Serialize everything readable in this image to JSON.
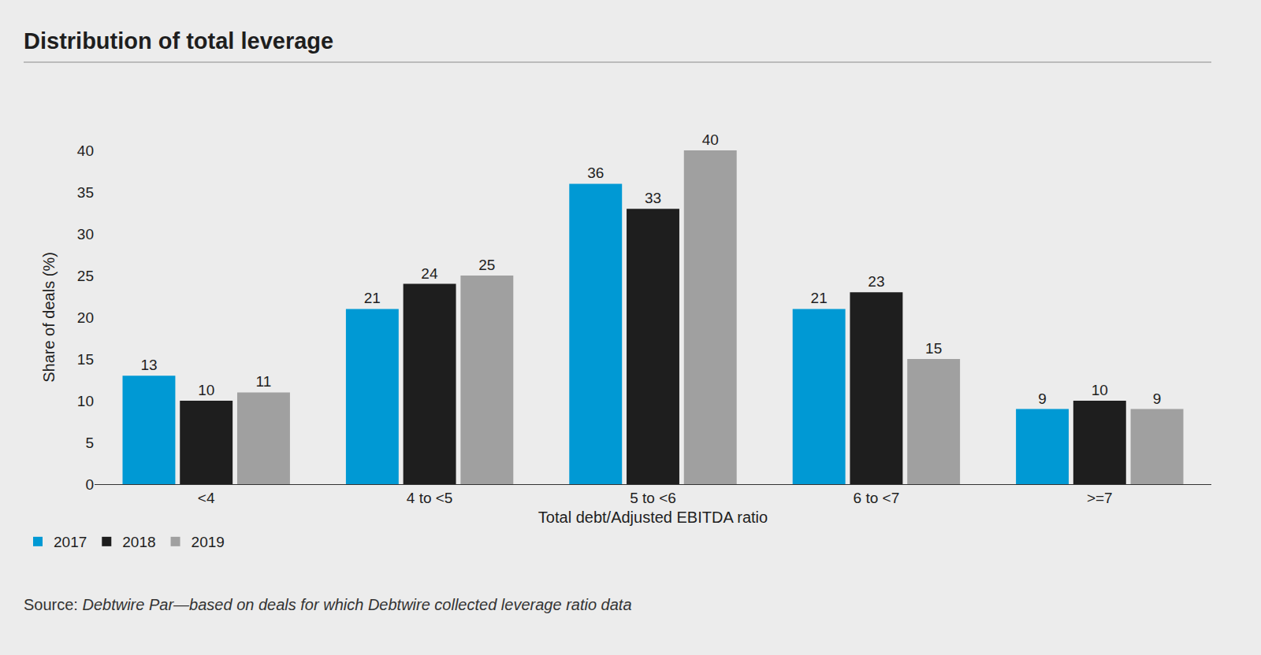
{
  "chart_data": {
    "type": "bar",
    "title": "Distribution of total leverage",
    "x_label": "Total debt/Adjusted EBITDA ratio",
    "y_label": "Share of deals (%)",
    "categories": [
      "<4",
      "4 to <5",
      "5 to <6",
      "6 to <7",
      ">=7"
    ],
    "series": [
      {
        "name": "2017",
        "color": "#0099d4",
        "values": [
          13,
          21,
          36,
          21,
          9
        ]
      },
      {
        "name": "2018",
        "color": "#1e1e1e",
        "values": [
          10,
          24,
          33,
          23,
          10
        ]
      },
      {
        "name": "2019",
        "color": "#a0a0a0",
        "values": [
          11,
          25,
          40,
          15,
          9
        ]
      }
    ],
    "ylim": [
      0,
      40
    ],
    "yticks": [
      0,
      5,
      10,
      15,
      20,
      25,
      30,
      35,
      40
    ],
    "grid": false,
    "legend": "bottom left",
    "data_labels": true,
    "source": {
      "label": "Source:",
      "text": "Debtwire Par—based on deals for which Debtwire collected leverage ratio data"
    }
  }
}
